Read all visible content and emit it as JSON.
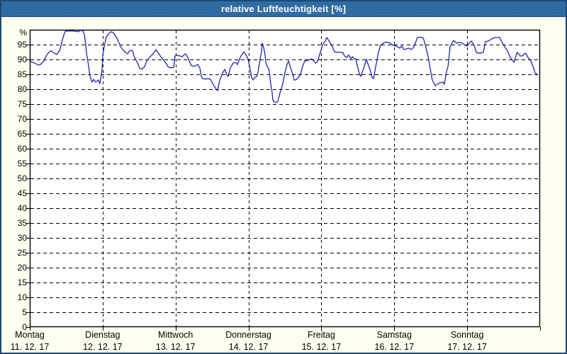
{
  "window": {
    "title": "relative Luftfeuchtigkeit [%]"
  },
  "colors": {
    "titlebar_bg": "#2d69a0",
    "frame_border": "#1c4a77",
    "page_bg": "#fffff0",
    "plot_bg": "#ffffff",
    "grid": "#000000",
    "line": "#2222b2",
    "title_text": "#ffffff",
    "label_text": "#000000"
  },
  "chart_data": {
    "type": "line",
    "title": "relative Luftfeuchtigkeit [%]",
    "ylabel": "%",
    "ylim": [
      0,
      100
    ],
    "y_ticks": [
      0,
      5,
      10,
      15,
      20,
      25,
      30,
      35,
      40,
      45,
      50,
      55,
      60,
      65,
      70,
      75,
      80,
      85,
      90,
      95
    ],
    "grid": "dashed horizontal every 5%, dashed vertical at day boundaries",
    "legend_position": "none",
    "x_range_hours": [
      0,
      168
    ],
    "days": [
      {
        "name": "Montag",
        "date": "11. 12. 17"
      },
      {
        "name": "Dienstag",
        "date": "12. 12. 17"
      },
      {
        "name": "Mittwoch",
        "date": "13. 12. 17"
      },
      {
        "name": "Donnerstag",
        "date": "14. 12. 17"
      },
      {
        "name": "Freitag",
        "date": "15. 12. 17"
      },
      {
        "name": "Samstag",
        "date": "16. 12. 17"
      },
      {
        "name": "Sonntag",
        "date": "17. 12. 17"
      }
    ],
    "series": [
      {
        "name": "relative Luftfeuchtigkeit",
        "units": "percent, x = hours since Montag 00:00",
        "points": [
          [
            0.2,
            89.3
          ],
          [
            1.6,
            88.8
          ],
          [
            2.8,
            88.1
          ],
          [
            3.5,
            88.3
          ],
          [
            4.7,
            89.5
          ],
          [
            5.4,
            91.2
          ],
          [
            6.3,
            92.4
          ],
          [
            7.0,
            92.9
          ],
          [
            7.7,
            92.4
          ],
          [
            8.9,
            91.7
          ],
          [
            9.8,
            92.9
          ],
          [
            10.3,
            94.8
          ],
          [
            11.0,
            97.6
          ],
          [
            11.7,
            99.5
          ],
          [
            12.8,
            99.6
          ],
          [
            14.0,
            99.6
          ],
          [
            15.2,
            99.5
          ],
          [
            15.9,
            99.3
          ],
          [
            16.8,
            99.8
          ],
          [
            17.5,
            99.6
          ],
          [
            18.0,
            98.3
          ],
          [
            18.4,
            95.2
          ],
          [
            18.7,
            91.9
          ],
          [
            19.1,
            89.5
          ],
          [
            19.4,
            87.6
          ],
          [
            19.8,
            84.5
          ],
          [
            20.3,
            82.9
          ],
          [
            20.5,
            82.4
          ],
          [
            21.0,
            83.3
          ],
          [
            21.7,
            82.4
          ],
          [
            22.6,
            83.1
          ],
          [
            23.1,
            81.9
          ],
          [
            23.8,
            86.4
          ],
          [
            24.0,
            91.2
          ],
          [
            24.5,
            94.3
          ],
          [
            25.2,
            97.6
          ],
          [
            26.1,
            98.8
          ],
          [
            26.8,
            99.3
          ],
          [
            27.5,
            99.0
          ],
          [
            28.5,
            97.6
          ],
          [
            29.2,
            96.0
          ],
          [
            29.9,
            94.3
          ],
          [
            30.8,
            93.1
          ],
          [
            31.5,
            92.4
          ],
          [
            32.2,
            91.9
          ],
          [
            32.9,
            92.9
          ],
          [
            33.4,
            93.1
          ],
          [
            33.8,
            92.9
          ],
          [
            34.5,
            90.7
          ],
          [
            35.5,
            88.8
          ],
          [
            36.2,
            87.1
          ],
          [
            36.9,
            86.7
          ],
          [
            37.8,
            87.6
          ],
          [
            38.5,
            89.5
          ],
          [
            39.4,
            90.7
          ],
          [
            40.4,
            91.7
          ],
          [
            41.3,
            92.9
          ],
          [
            41.5,
            93.3
          ],
          [
            42.5,
            91.9
          ],
          [
            43.2,
            90.9
          ],
          [
            43.9,
            90.0
          ],
          [
            44.8,
            88.8
          ],
          [
            45.5,
            87.6
          ],
          [
            46.2,
            87.2
          ],
          [
            47.4,
            87.3
          ],
          [
            47.8,
            91.2
          ],
          [
            48.3,
            91.4
          ],
          [
            49.5,
            91.2
          ],
          [
            50.2,
            90.9
          ],
          [
            50.9,
            91.7
          ],
          [
            51.3,
            91.9
          ],
          [
            52.0,
            90.7
          ],
          [
            52.5,
            89.5
          ],
          [
            53.2,
            87.9
          ],
          [
            54.1,
            87.7
          ],
          [
            55.3,
            88.3
          ],
          [
            56.0,
            87.1
          ],
          [
            56.5,
            84.3
          ],
          [
            56.9,
            83.6
          ],
          [
            57.9,
            83.4
          ],
          [
            58.8,
            83.6
          ],
          [
            59.5,
            83.3
          ],
          [
            60.2,
            81.9
          ],
          [
            61.4,
            80.0
          ],
          [
            61.8,
            79.5
          ],
          [
            62.5,
            82.9
          ],
          [
            63.5,
            85.5
          ],
          [
            64.2,
            86.7
          ],
          [
            64.9,
            84.8
          ],
          [
            65.3,
            84.3
          ],
          [
            66.0,
            87.1
          ],
          [
            67.0,
            88.8
          ],
          [
            67.7,
            89.0
          ],
          [
            68.4,
            88.3
          ],
          [
            69.5,
            91.2
          ],
          [
            70.5,
            92.5
          ],
          [
            71.2,
            91.5
          ],
          [
            71.6,
            90.7
          ],
          [
            71.9,
            90.0
          ],
          [
            72.8,
            85.5
          ],
          [
            73.0,
            84.0
          ],
          [
            73.5,
            83.1
          ],
          [
            74.2,
            84.0
          ],
          [
            74.7,
            84.3
          ],
          [
            75.1,
            85.5
          ],
          [
            75.8,
            90.0
          ],
          [
            76.3,
            92.6
          ],
          [
            76.5,
            95.5
          ],
          [
            77.0,
            94.0
          ],
          [
            77.5,
            91.4
          ],
          [
            77.7,
            89.0
          ],
          [
            78.2,
            87.6
          ],
          [
            78.6,
            87.1
          ],
          [
            78.9,
            85.5
          ],
          [
            79.3,
            81.9
          ],
          [
            79.8,
            78.8
          ],
          [
            80.0,
            76.4
          ],
          [
            80.5,
            75.7
          ],
          [
            81.2,
            75.5
          ],
          [
            81.7,
            76.0
          ],
          [
            82.4,
            78.8
          ],
          [
            83.3,
            81.9
          ],
          [
            84.0,
            85.5
          ],
          [
            84.7,
            88.3
          ],
          [
            85.2,
            89.5
          ],
          [
            85.9,
            87.1
          ],
          [
            86.8,
            84.3
          ],
          [
            87.0,
            83.1
          ],
          [
            87.7,
            83.2
          ],
          [
            88.2,
            83.6
          ],
          [
            89.1,
            85.0
          ],
          [
            89.8,
            87.6
          ],
          [
            90.5,
            89.5
          ],
          [
            91.5,
            89.7
          ],
          [
            92.2,
            90.0
          ],
          [
            92.9,
            90.2
          ],
          [
            93.6,
            89.3
          ],
          [
            94.0,
            88.8
          ],
          [
            94.5,
            89.0
          ],
          [
            95.0,
            90.2
          ],
          [
            96.1,
            93.8
          ],
          [
            96.4,
            95.0
          ],
          [
            97.3,
            96.2
          ],
          [
            97.8,
            97.4
          ],
          [
            98.7,
            95.9
          ],
          [
            99.6,
            94.3
          ],
          [
            100.3,
            92.6
          ],
          [
            101.0,
            92.4
          ],
          [
            102.2,
            92.4
          ],
          [
            103.1,
            92.3
          ],
          [
            103.6,
            91.2
          ],
          [
            104.3,
            90.7
          ],
          [
            105.0,
            91.5
          ],
          [
            105.7,
            90.2
          ],
          [
            106.2,
            91.0
          ],
          [
            106.6,
            90.3
          ],
          [
            107.3,
            90.2
          ],
          [
            108.5,
            85.2
          ],
          [
            109.0,
            84.3
          ],
          [
            110.1,
            87.6
          ],
          [
            110.8,
            90.0
          ],
          [
            112.0,
            86.7
          ],
          [
            112.7,
            84.0
          ],
          [
            113.2,
            83.6
          ],
          [
            113.9,
            87.6
          ],
          [
            114.8,
            92.4
          ],
          [
            115.5,
            94.8
          ],
          [
            116.7,
            95.7
          ],
          [
            117.6,
            95.8
          ],
          [
            118.5,
            95.6
          ],
          [
            119.5,
            94.8
          ],
          [
            120.6,
            94.5
          ],
          [
            121.8,
            93.8
          ],
          [
            122.5,
            94.5
          ],
          [
            123.2,
            93.3
          ],
          [
            124.1,
            93.6
          ],
          [
            124.8,
            93.8
          ],
          [
            125.5,
            93.4
          ],
          [
            126.0,
            93.6
          ],
          [
            126.7,
            94.8
          ],
          [
            127.6,
            97.4
          ],
          [
            128.6,
            97.5
          ],
          [
            129.5,
            97.3
          ],
          [
            130.2,
            95.0
          ],
          [
            131.1,
            91.2
          ],
          [
            131.8,
            87.1
          ],
          [
            132.5,
            83.1
          ],
          [
            133.5,
            81.2
          ],
          [
            134.2,
            81.7
          ],
          [
            134.9,
            82.1
          ],
          [
            136.0,
            82.4
          ],
          [
            136.5,
            81.7
          ],
          [
            137.2,
            86.0
          ],
          [
            137.7,
            87.6
          ],
          [
            138.4,
            94.3
          ],
          [
            139.5,
            96.4
          ],
          [
            140.5,
            95.5
          ],
          [
            141.4,
            95.7
          ],
          [
            142.3,
            95.6
          ],
          [
            143.0,
            95.0
          ],
          [
            144.0,
            94.5
          ],
          [
            145.1,
            96.0
          ],
          [
            145.4,
            96.2
          ],
          [
            146.3,
            94.8
          ],
          [
            147.0,
            92.4
          ],
          [
            147.7,
            92.1
          ],
          [
            148.6,
            92.2
          ],
          [
            149.3,
            92.4
          ],
          [
            150.0,
            96.0
          ],
          [
            151.0,
            96.2
          ],
          [
            152.4,
            97.1
          ],
          [
            153.3,
            97.4
          ],
          [
            154.7,
            97.4
          ],
          [
            155.9,
            95.0
          ],
          [
            156.8,
            93.6
          ],
          [
            157.5,
            92.4
          ],
          [
            158.2,
            90.7
          ],
          [
            159.1,
            89.5
          ],
          [
            159.4,
            89.0
          ],
          [
            160.3,
            91.9
          ],
          [
            160.5,
            92.4
          ],
          [
            161.5,
            91.2
          ],
          [
            162.2,
            91.2
          ],
          [
            162.9,
            91.9
          ],
          [
            163.3,
            92.1
          ],
          [
            164.0,
            90.7
          ],
          [
            165.0,
            89.5
          ],
          [
            165.7,
            87.6
          ],
          [
            166.4,
            85.5
          ],
          [
            167.3,
            84.8
          ]
        ]
      }
    ]
  }
}
